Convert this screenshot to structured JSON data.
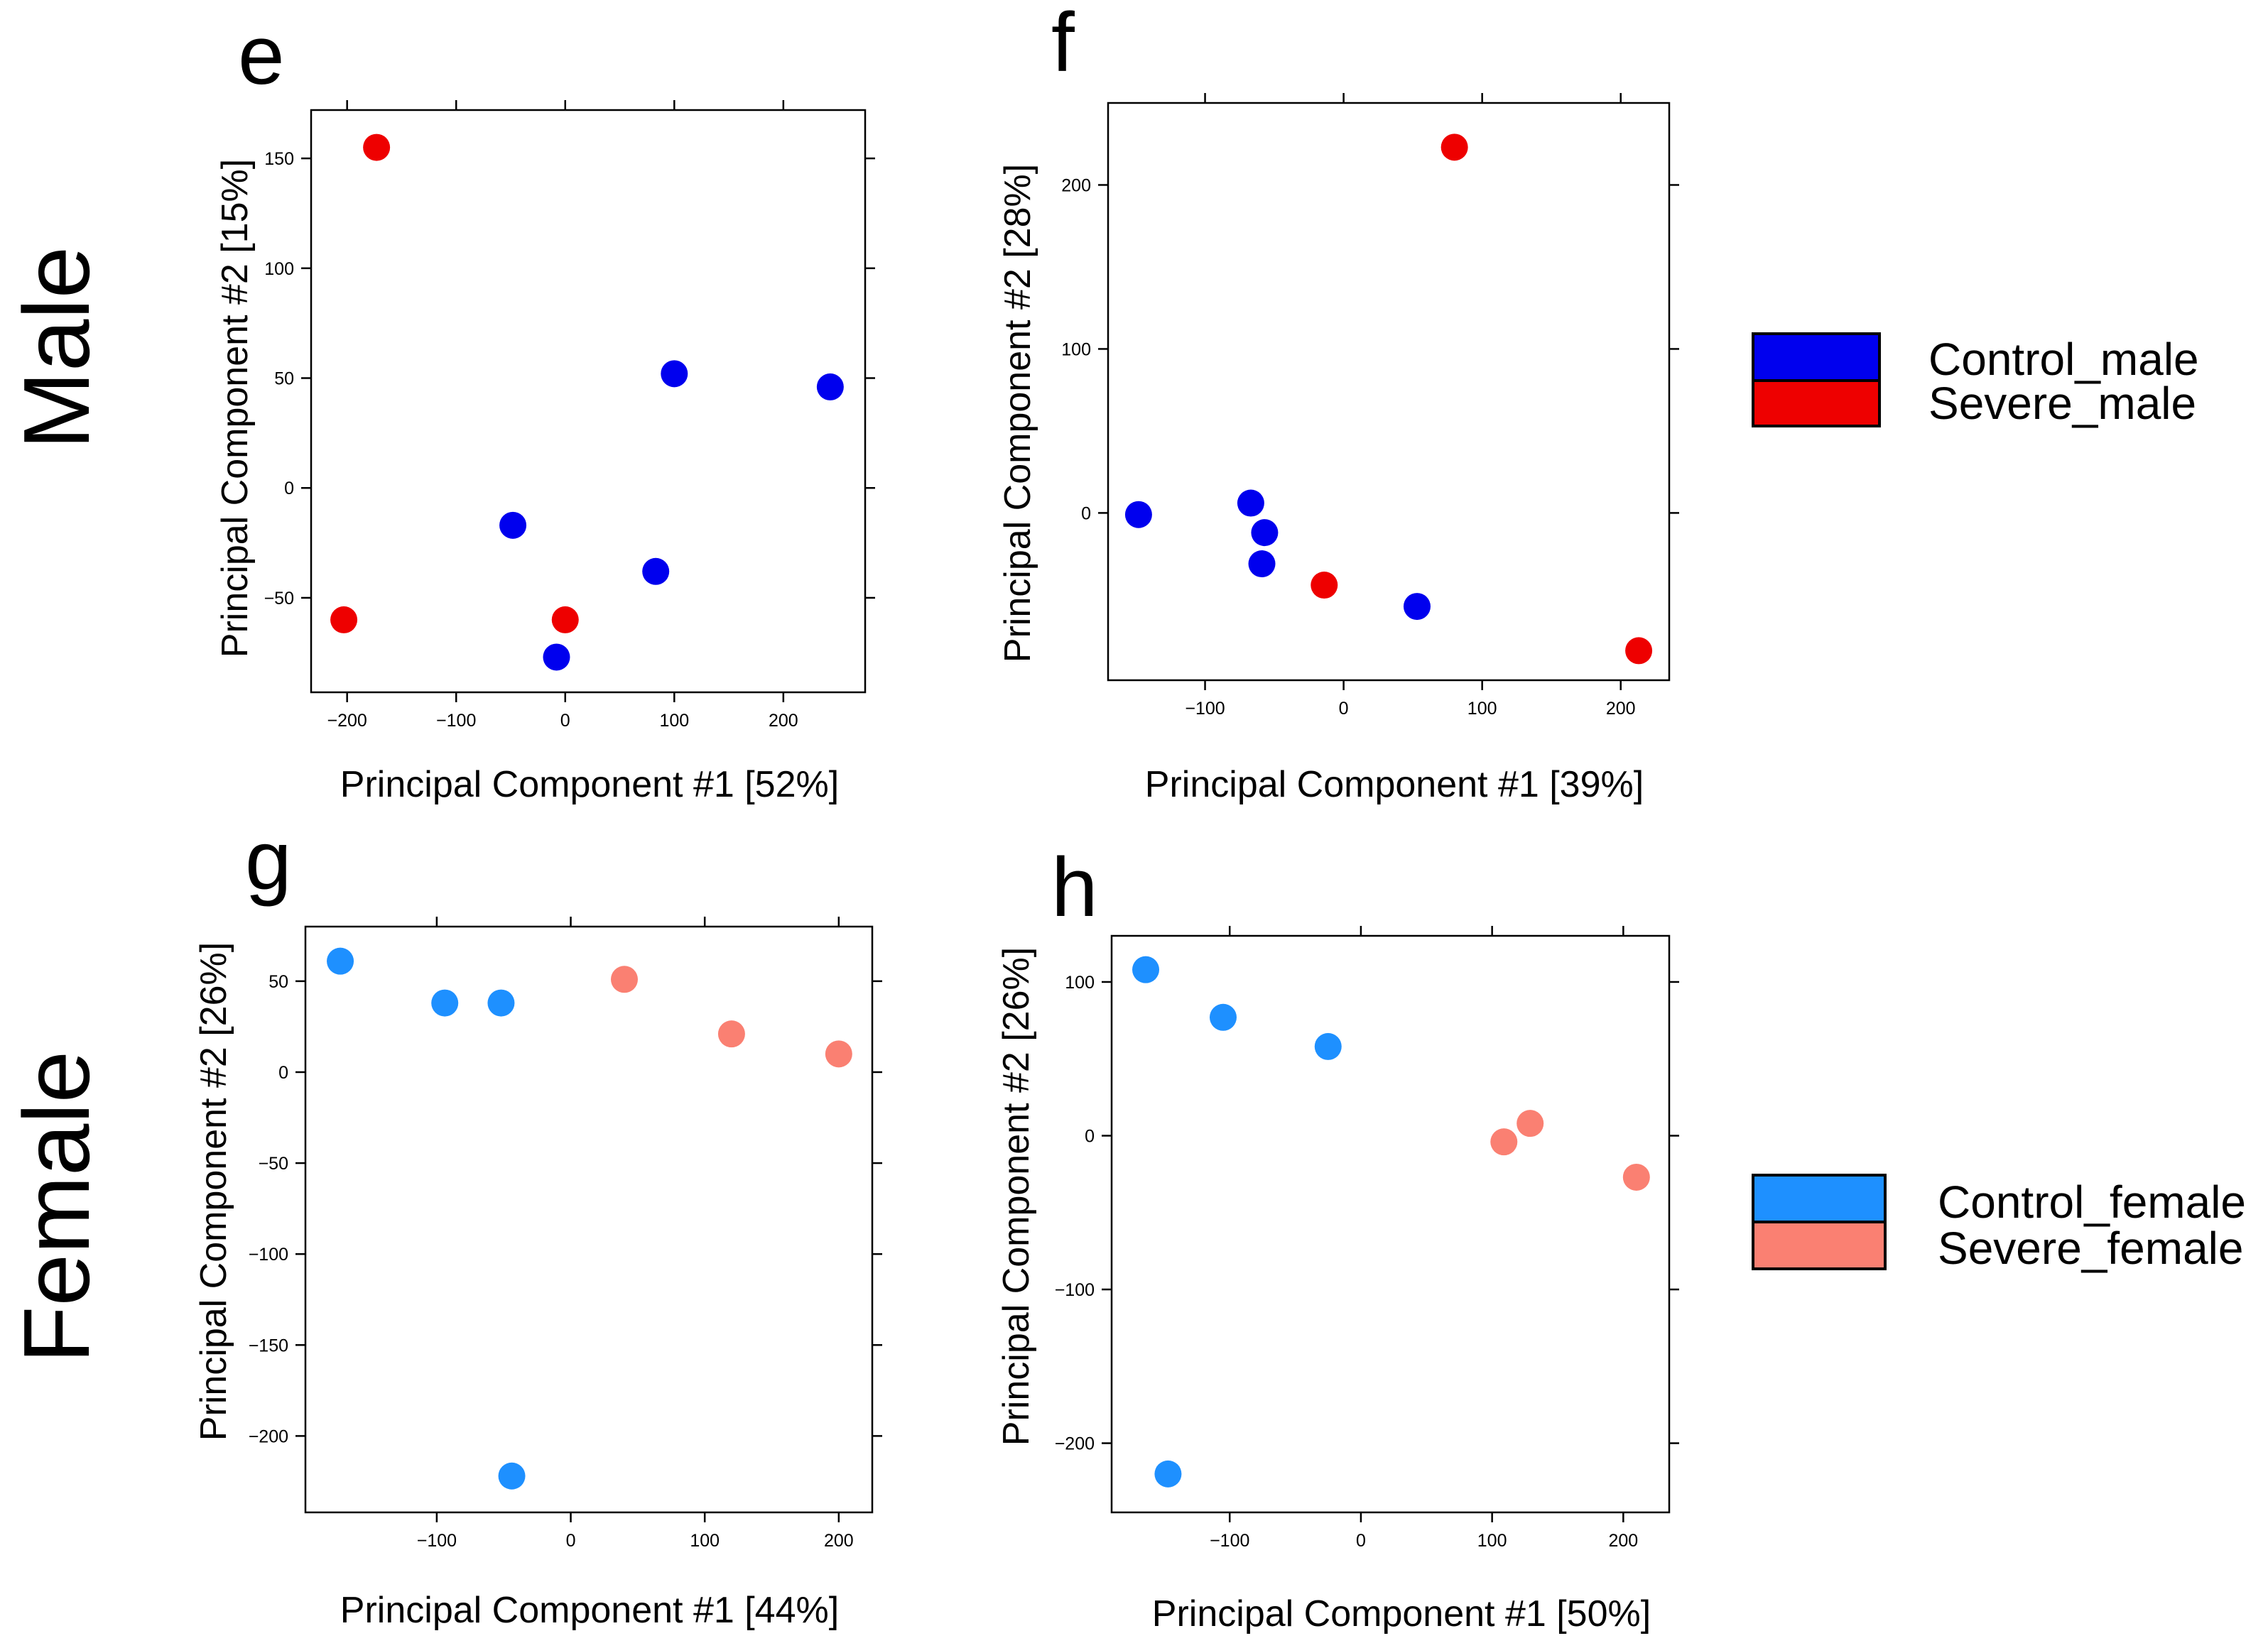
{
  "row_labels": {
    "top": "Male",
    "bottom": "Female"
  },
  "colors": {
    "Control_male": "#0000EE",
    "Severe_male": "#EE0000",
    "Control_female": "#1E90FF",
    "Severe_female": "#FA8072"
  },
  "legends": {
    "male": [
      {
        "label": "Control_male",
        "color": "#0000EE"
      },
      {
        "label": "Severe_male",
        "color": "#EE0000"
      }
    ],
    "female": [
      {
        "label": "Control_female",
        "color": "#1E90FF"
      },
      {
        "label": "Severe_female",
        "color": "#FA8072"
      }
    ]
  },
  "chart_data": [
    {
      "type": "scatter",
      "panel": "e",
      "xlabel": "Principal Component  #1 [52%]",
      "ylabel": "Principal Component  #2 [15%]",
      "xlim": [
        -233,
        275
      ],
      "ylim": [
        -93,
        172
      ],
      "xticks": [
        -200,
        -100,
        0,
        100,
        200
      ],
      "yticks": [
        -50,
        0,
        50,
        100,
        150
      ],
      "xtick_labels": [
        "−200",
        "−100",
        "0",
        "100",
        "200"
      ],
      "ytick_labels": [
        "−50",
        "0",
        "50",
        "100",
        "150"
      ],
      "series": [
        {
          "name": "Control_male",
          "points": [
            [
              100,
              52
            ],
            [
              243,
              46
            ],
            [
              -48,
              -17
            ],
            [
              83,
              -38
            ],
            [
              -8,
              -77
            ]
          ]
        },
        {
          "name": "Severe_male",
          "points": [
            [
              -173,
              155
            ],
            [
              -203,
              -60
            ],
            [
              0,
              -60
            ]
          ]
        }
      ]
    },
    {
      "type": "scatter",
      "panel": "f",
      "xlabel": "Principal Component  #1 [39%]",
      "ylabel": "Principal Component  #2 [28%]",
      "xlim": [
        -170,
        235
      ],
      "ylim": [
        -102,
        250
      ],
      "xticks": [
        -100,
        0,
        100,
        200
      ],
      "yticks": [
        0,
        100,
        200
      ],
      "xtick_labels": [
        "−100",
        "0",
        "100",
        "200"
      ],
      "ytick_labels": [
        "0",
        "100",
        "200"
      ],
      "series": [
        {
          "name": "Control_male",
          "points": [
            [
              -148,
              -1
            ],
            [
              -67,
              6
            ],
            [
              -57,
              -12
            ],
            [
              -59,
              -31
            ],
            [
              53,
              -57
            ]
          ]
        },
        {
          "name": "Severe_male",
          "points": [
            [
              80,
              223
            ],
            [
              -14,
              -44
            ],
            [
              213,
              -84
            ]
          ]
        }
      ]
    },
    {
      "type": "scatter",
      "panel": "g",
      "xlabel": "Principal Component  #1 [44%]",
      "ylabel": "Principal Component  #2 [26%]",
      "xlim": [
        -198,
        225
      ],
      "ylim": [
        -242,
        80
      ],
      "xticks": [
        -100,
        0,
        100,
        200
      ],
      "yticks": [
        -200,
        -150,
        -100,
        -50,
        0,
        50
      ],
      "xtick_labels": [
        "−100",
        "0",
        "100",
        "200"
      ],
      "ytick_labels": [
        "−200",
        "−150",
        "−100",
        "−50",
        "0",
        "50"
      ],
      "series": [
        {
          "name": "Control_female",
          "points": [
            [
              -172,
              61
            ],
            [
              -94,
              38
            ],
            [
              -52,
              38
            ],
            [
              -44,
              -222
            ]
          ]
        },
        {
          "name": "Severe_female",
          "points": [
            [
              40,
              51
            ],
            [
              120,
              21
            ],
            [
              200,
              10
            ]
          ]
        }
      ]
    },
    {
      "type": "scatter",
      "panel": "h",
      "xlabel": "Principal Component  #1 [50%]",
      "ylabel": "Principal Component  #2 [26%]",
      "xlim": [
        -190,
        235
      ],
      "ylim": [
        -245,
        130
      ],
      "xticks": [
        -100,
        0,
        100,
        200
      ],
      "yticks": [
        -200,
        -100,
        0,
        100
      ],
      "xtick_labels": [
        "−100",
        "0",
        "100",
        "200"
      ],
      "ytick_labels": [
        "−200",
        "−100",
        "0",
        "100"
      ],
      "series": [
        {
          "name": "Control_female",
          "points": [
            [
              -164,
              108
            ],
            [
              -105,
              77
            ],
            [
              -25,
              58
            ],
            [
              -147,
              -220
            ]
          ]
        },
        {
          "name": "Severe_female",
          "points": [
            [
              109,
              -4
            ],
            [
              129,
              8
            ],
            [
              210,
              -27
            ]
          ]
        }
      ]
    }
  ]
}
